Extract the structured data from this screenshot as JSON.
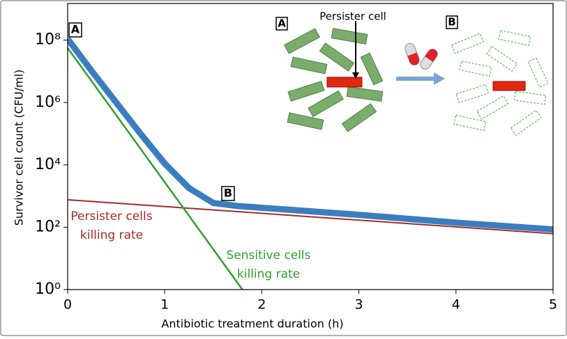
{
  "chart_data": {
    "type": "line",
    "x_label": "Antibiotic treatment duration (h)",
    "y_label": "Survivor cell count  (CFU/ml)",
    "xlim": [
      0,
      5
    ],
    "xticks": [
      0,
      1,
      2,
      3,
      4,
      5
    ],
    "ylim": [
      1,
      1500000000
    ],
    "log_y": true,
    "yticks": [
      {
        "value": 1,
        "label": "10⁰"
      },
      {
        "value": 100,
        "label": "10²"
      },
      {
        "value": 10000,
        "label": "10⁴"
      },
      {
        "value": 1000000,
        "label": "10⁶"
      },
      {
        "value": 100000000,
        "label": "10⁸"
      }
    ],
    "series": [
      {
        "color": "#3a7ebf",
        "x": [
          0,
          0.25,
          0.5,
          0.75,
          1,
          1.25,
          1.5,
          1.75,
          2,
          3,
          4,
          5
        ],
        "values": [
          110000000,
          10000000,
          1000000,
          100000,
          11000,
          1800,
          600,
          480,
          420,
          250,
          140,
          85
        ]
      },
      {
        "color": "#2ca02c",
        "x": [
          0,
          1.8
        ],
        "values": [
          56000000,
          1
        ]
      },
      {
        "color": "#a52a2a",
        "x": [
          0,
          5
        ],
        "values": [
          760,
          62
        ]
      }
    ],
    "annotations": [
      {
        "text": "A",
        "boxed": true
      },
      {
        "text": "B",
        "boxed": true
      },
      {
        "text": "Persister cells",
        "color": "#a52a2a"
      },
      {
        "text": "killing rate",
        "color": "#a52a2a"
      },
      {
        "text": "Sensitive cells",
        "color": "#2ca02c"
      },
      {
        "text": "killing rate",
        "color": "#2ca02c"
      }
    ],
    "illustration": {
      "label_a": "A",
      "label_b": "B",
      "callout": "Persister cell"
    }
  }
}
